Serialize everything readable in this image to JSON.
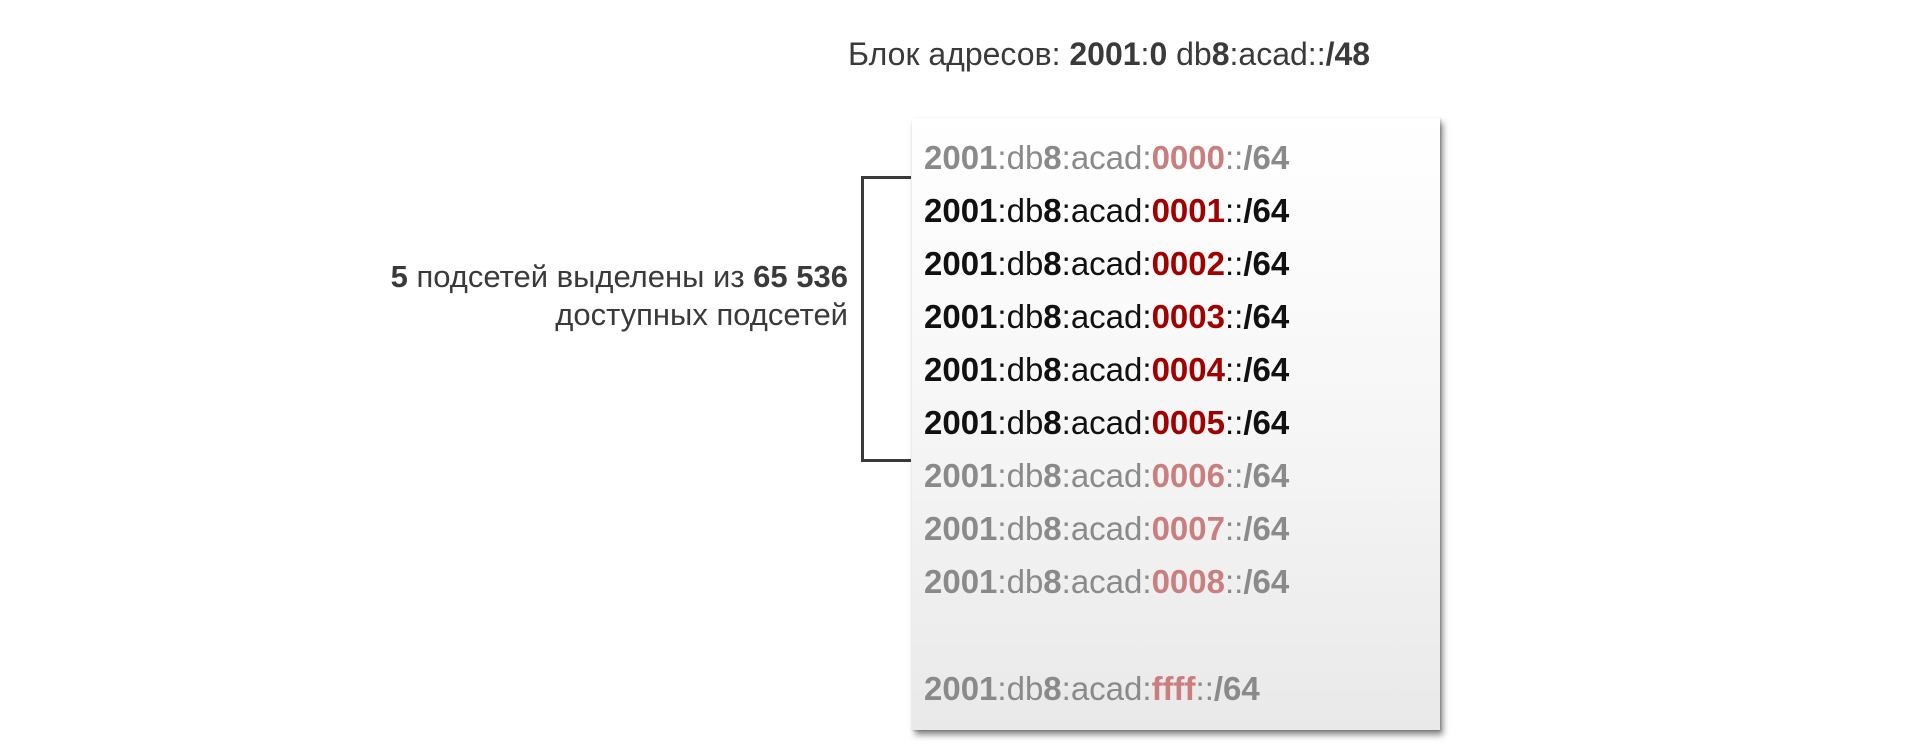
{
  "header": {
    "label": "Блок адресов",
    "separator": ":",
    "prefix_bold": "2001",
    "colon": ":",
    "zero_bold": "0",
    "db": "db",
    "eight": "8",
    "rest": ":acad::",
    "slash_len": "/48"
  },
  "note": {
    "count": "5",
    "text1": " подсетей выделены из ",
    "total": "65 536",
    "text2": "доступных подсетей"
  },
  "subnets": [
    {
      "p1": "2001",
      "p2": ":db",
      "p3": "8",
      "p4": ":acad:",
      "sub": "0000",
      "p5": "::",
      "len": "/64",
      "state": "faded"
    },
    {
      "p1": "2001",
      "p2": ":db",
      "p3": "8",
      "p4": ":acad:",
      "sub": "0001",
      "p5": "::",
      "len": "/64",
      "state": "active"
    },
    {
      "p1": "2001",
      "p2": ":db",
      "p3": "8",
      "p4": ":acad:",
      "sub": "0002",
      "p5": "::",
      "len": "/64",
      "state": "active"
    },
    {
      "p1": "2001",
      "p2": ":db",
      "p3": "8",
      "p4": ":acad:",
      "sub": "0003",
      "p5": "::",
      "len": "/64",
      "state": "active"
    },
    {
      "p1": "2001",
      "p2": ":db",
      "p3": "8",
      "p4": ":acad:",
      "sub": "0004",
      "p5": "::",
      "len": "/64",
      "state": "active"
    },
    {
      "p1": "2001",
      "p2": ":db",
      "p3": "8",
      "p4": ":acad:",
      "sub": "0005",
      "p5": "::",
      "len": "/64",
      "state": "active"
    },
    {
      "p1": "2001",
      "p2": ":db",
      "p3": "8",
      "p4": ":acad:",
      "sub": "0006",
      "p5": "::",
      "len": "/64",
      "state": "faded"
    },
    {
      "p1": "2001",
      "p2": ":db",
      "p3": "8",
      "p4": ":acad:",
      "sub": "0007",
      "p5": "::",
      "len": "/64",
      "state": "faded"
    },
    {
      "p1": "2001",
      "p2": ":db",
      "p3": "8",
      "p4": ":acad:",
      "sub": "0008",
      "p5": "::",
      "len": "/64",
      "state": "faded"
    },
    {
      "p1": "2001",
      "p2": ":db",
      "p3": "8",
      "p4": ":acad:",
      "sub": "ffff",
      "p5": "::",
      "len": "/64",
      "state": "faded"
    }
  ],
  "colors": {
    "subnet_active": "#a00000",
    "subnet_faded": "#c97f7f",
    "text_active": "#111111",
    "text_faded": "#8a8a8a",
    "text_label": "#3a3a3a"
  }
}
